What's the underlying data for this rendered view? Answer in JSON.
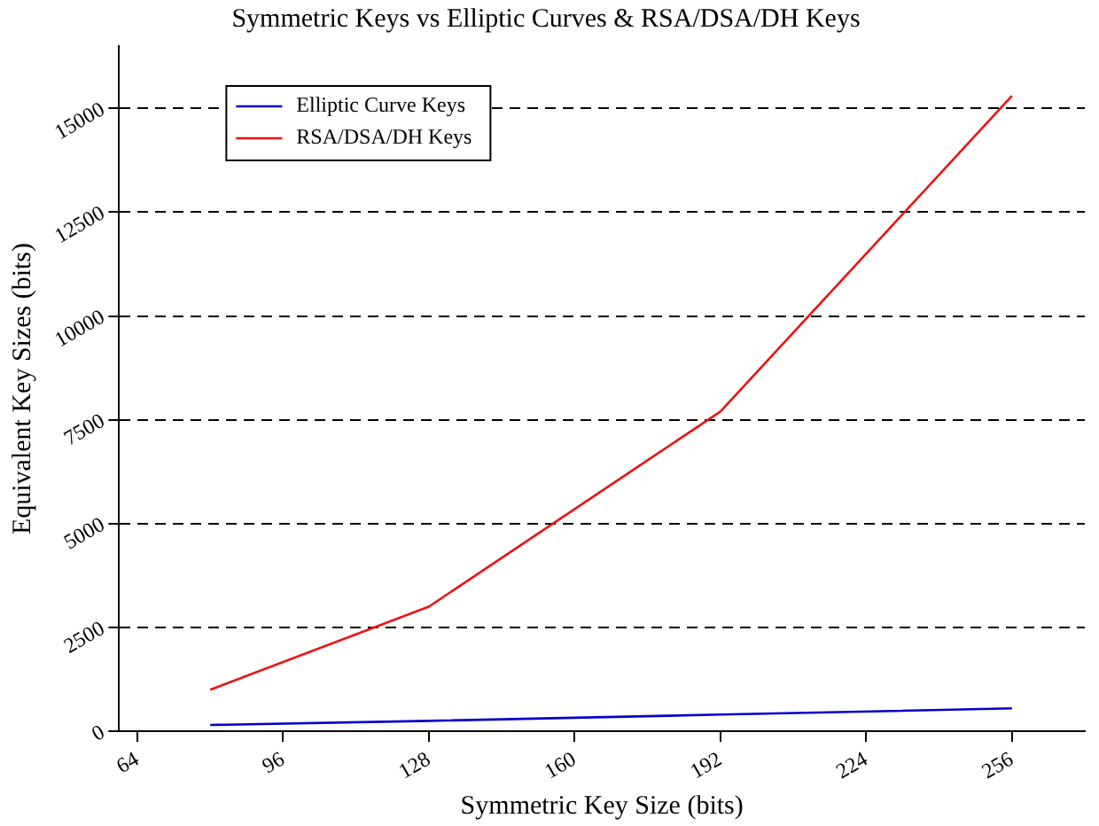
{
  "chart_data": {
    "type": "line",
    "title": "Symmetric Keys vs Elliptic Curves & RSA/DSA/DH Keys",
    "xlabel": "Symmetric Key Size (bits)",
    "ylabel": "Equivalent Key Sizes (bits)",
    "x": [
      80,
      128,
      192,
      256
    ],
    "series": [
      {
        "name": "Elliptic Curve Keys",
        "color": "#0000cc",
        "values": [
          150,
          250,
          400,
          550
        ]
      },
      {
        "name": "RSA/DSA/DH Keys",
        "color": "#ee1111",
        "values": [
          1000,
          3000,
          7700,
          15300
        ]
      }
    ],
    "xlim": [
      60,
      272
    ],
    "xticks": [
      64,
      96,
      128,
      160,
      192,
      224,
      256
    ],
    "ylim": [
      0,
      16500
    ],
    "yticks": [
      0,
      2500,
      5000,
      7500,
      10000,
      12500,
      15000
    ],
    "grid": "y",
    "legend": "top left",
    "marker": "none",
    "line_style": "solid"
  }
}
